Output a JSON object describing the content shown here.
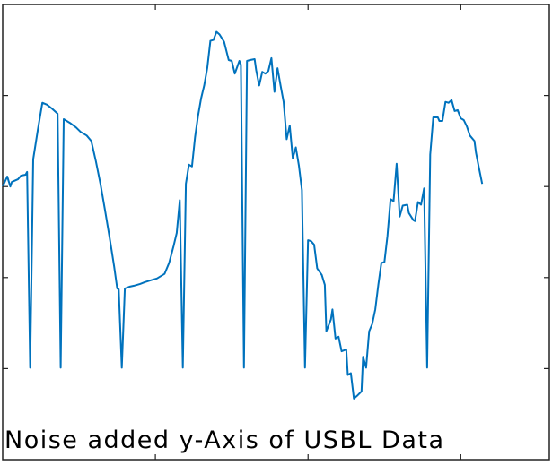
{
  "chart_data": {
    "type": "line",
    "title": "Noise added y-Axis of USBL Data",
    "x": [
      0,
      3,
      5,
      6,
      10,
      12,
      15,
      16,
      18,
      20,
      23,
      26,
      29,
      32,
      36,
      38,
      40,
      44,
      48,
      51,
      55,
      58,
      61,
      64,
      67,
      70,
      73,
      75,
      76,
      78,
      80,
      83,
      86,
      90,
      93,
      97,
      101,
      106,
      109,
      112,
      114,
      116,
      118,
      120,
      122,
      124,
      126,
      128,
      130,
      132,
      134,
      136,
      138,
      140,
      142,
      145,
      148,
      150,
      152,
      155,
      156,
      158,
      160,
      162,
      165,
      166,
      168,
      170,
      172,
      174,
      176,
      178,
      180,
      182,
      184,
      186,
      188,
      190,
      192,
      194,
      196,
      198,
      200,
      202,
      204,
      206,
      209,
      211,
      212,
      215,
      216,
      218,
      220,
      222,
      225,
      226,
      228,
      230,
      232,
      235,
      236,
      238,
      240,
      242,
      244,
      246,
      248,
      250,
      252,
      254,
      256,
      258,
      260,
      262,
      265,
      266,
      269,
      270,
      272,
      274,
      276,
      278,
      280,
      282,
      285,
      286,
      288,
      290,
      292,
      294,
      296,
      298,
      300,
      302,
      304,
      306,
      309,
      310,
      312,
      314
    ],
    "series": [
      {
        "color": "#0072bd",
        "values": [
          300,
          311,
          300,
          305,
          308,
          312,
          313,
          316,
          101,
          330,
          362,
          392,
          390,
          386,
          380,
          101,
          374,
          370,
          365,
          360,
          356,
          350,
          328,
          303,
          274,
          244,
          212,
          188,
          187,
          101,
          188,
          190,
          191,
          193,
          195,
          197,
          199,
          204,
          216,
          235,
          249,
          285,
          101,
          303,
          324,
          322,
          354,
          378,
          397,
          411,
          430,
          460,
          461,
          470,
          467,
          459,
          439,
          438,
          424,
          438,
          434,
          101,
          438,
          439,
          440,
          428,
          411,
          426,
          424,
          427,
          441,
          404,
          430,
          411,
          393,
          352,
          367,
          331,
          343,
          323,
          296,
          101,
          241,
          240,
          236,
          210,
          203,
          192,
          141,
          154,
          165,
          133,
          135,
          119,
          121,
          93,
          95,
          67,
          70,
          75,
          113,
          101,
          141,
          149,
          165,
          192,
          216,
          217,
          246,
          286,
          284,
          325,
          267,
          279,
          280,
          271,
          263,
          262,
          283,
          280,
          298,
          101,
          335,
          376,
          376,
          372,
          372,
          393,
          392,
          395,
          383,
          384,
          375,
          373,
          366,
          356,
          350,
          337,
          320,
          303
        ]
      }
    ],
    "xlim": [
      0,
      358
    ],
    "ylim": [
      0,
      500
    ],
    "xticks": [
      100,
      200,
      300
    ],
    "yticks": [
      100,
      200,
      300,
      400
    ]
  }
}
